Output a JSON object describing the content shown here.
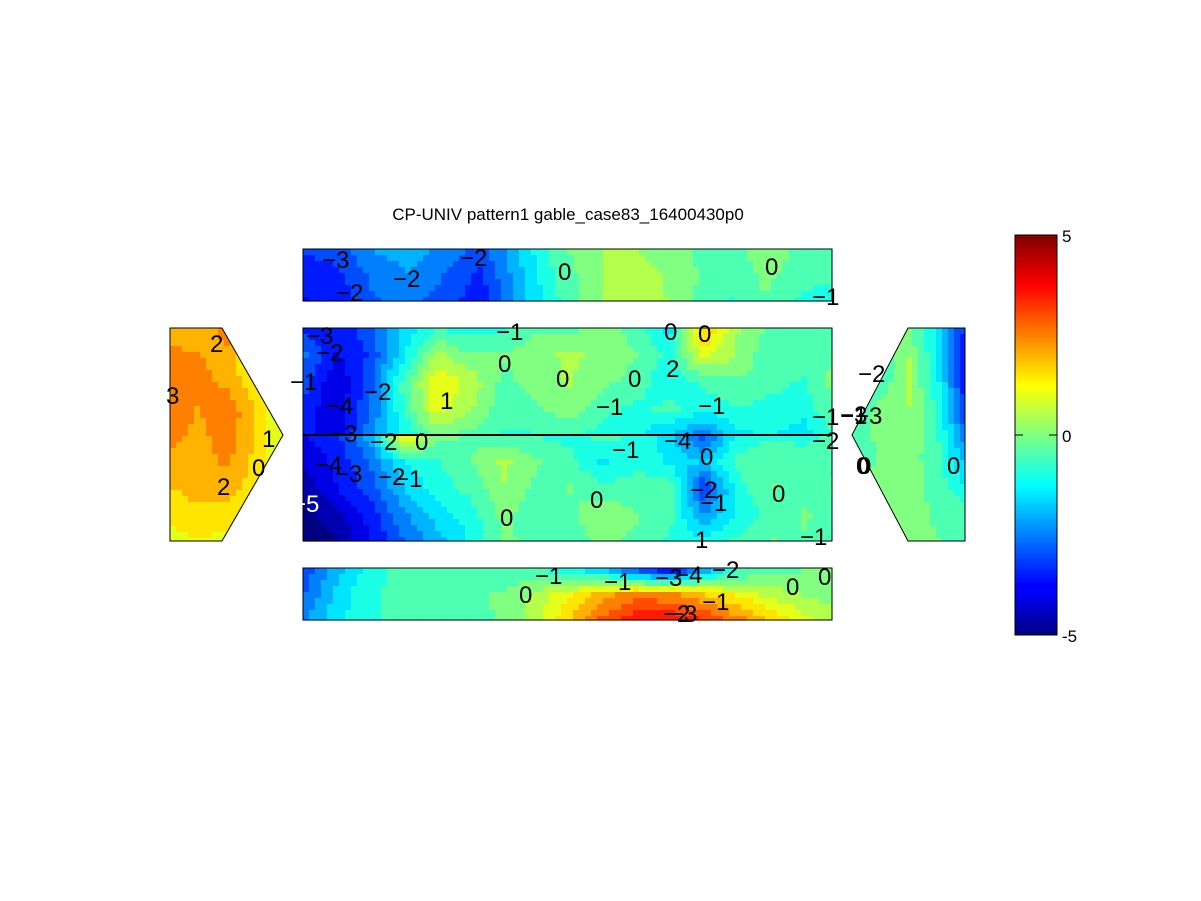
{
  "chart_data": {
    "type": "heatmap",
    "title": "CP-UNIV pattern1 gable_case83_16400430p0",
    "colormap": "jet",
    "clim": [
      -5,
      5
    ],
    "colorbar": {
      "ticks": [
        "5",
        "0",
        "-5"
      ],
      "placement": "right"
    },
    "panels": [
      {
        "name": "top-strip",
        "contour_labels": [
          "-3",
          "-2",
          "-2",
          "-2",
          "0",
          "0",
          "-1"
        ],
        "grid": [
          [
            -3.2,
            -3.0,
            -2.2,
            -2.0,
            -2.4,
            -3.0,
            -1.8,
            -0.6,
            0.2,
            0.3,
            0.1,
            -0.3,
            -0.6,
            0.2,
            -0.4,
            -0.5
          ],
          [
            -3.6,
            -3.4,
            -2.6,
            -2.3,
            -2.8,
            -3.4,
            -2.0,
            -0.8,
            0.0,
            0.5,
            0.3,
            -0.2,
            -0.7,
            -0.1,
            -0.6,
            -0.6
          ],
          [
            -3.8,
            -3.6,
            -2.8,
            -2.6,
            -3.0,
            -3.6,
            -2.1,
            -0.9,
            -0.1,
            0.6,
            0.4,
            -0.3,
            -0.8,
            -0.3,
            -0.9,
            -1.0
          ]
        ]
      },
      {
        "name": "roof-upper",
        "contour_labels": [
          "-3",
          "-2",
          "-1",
          "-2",
          "-4",
          "1",
          "0",
          "-1",
          "0",
          "0",
          "0",
          "2",
          "-1",
          "-1",
          "-1",
          "-1",
          "-3",
          "0"
        ],
        "grid": [
          [
            -3.4,
            -3.6,
            -3.0,
            -1.6,
            -0.8,
            -1.0,
            -0.9,
            -0.4,
            -0.4,
            -0.1,
            -0.5,
            -1.6,
            2.0,
            0.3,
            -0.4,
            -0.5,
            -0.6
          ],
          [
            -2.6,
            -3.8,
            -3.2,
            -1.4,
            0.4,
            -0.2,
            -0.2,
            0.2,
            0.3,
            0.2,
            -0.2,
            -0.9,
            1.0,
            0.2,
            -0.6,
            -0.6,
            -0.2
          ],
          [
            -3.0,
            -4.2,
            -3.0,
            -0.6,
            1.2,
            0.6,
            -0.4,
            0.0,
            0.3,
            -0.1,
            -0.5,
            -1.2,
            -0.6,
            -0.3,
            -0.6,
            -0.8,
            0.0
          ],
          [
            -3.4,
            -4.2,
            -2.8,
            -0.8,
            1.0,
            0.3,
            -0.6,
            -0.3,
            0.0,
            -0.6,
            -0.9,
            -0.6,
            -1.1,
            -0.8,
            -0.9,
            -1.0,
            -0.3
          ],
          [
            -3.6,
            -4.0,
            -2.4,
            -1.2,
            -0.2,
            -0.4,
            -0.8,
            -0.8,
            -0.6,
            -1.0,
            -1.2,
            -1.8,
            -2.6,
            -1.4,
            -1.2,
            -1.6,
            -0.6
          ]
        ]
      },
      {
        "name": "roof-lower",
        "contour_labels": [
          "-3",
          "-2",
          "-4",
          "-3",
          "-2",
          "-1",
          "-5",
          "0",
          "-1",
          "-4",
          "0",
          "0",
          "-2",
          "-1",
          "0",
          "-1",
          "0",
          "0",
          "-2",
          "1"
        ],
        "grid": [
          [
            -3.8,
            -3.4,
            -2.0,
            1.6,
            0.0,
            -0.3,
            -0.6,
            -0.8,
            -0.9,
            -0.6,
            -0.8,
            -1.6,
            -3.0,
            -1.2,
            -0.8,
            -1.0,
            -0.5
          ],
          [
            -4.2,
            -3.6,
            -2.8,
            -1.2,
            -0.8,
            -0.3,
            0.4,
            -0.2,
            -0.6,
            -1.4,
            -0.8,
            -1.4,
            -1.8,
            -0.6,
            -0.3,
            -0.4,
            -0.3
          ],
          [
            -4.6,
            -3.8,
            -3.0,
            -1.8,
            -1.0,
            -0.6,
            0.2,
            -0.4,
            -0.2,
            -0.5,
            -0.6,
            -0.4,
            -3.4,
            -1.0,
            -0.2,
            -0.4,
            -0.2
          ],
          [
            -5.0,
            -4.4,
            -3.6,
            -2.4,
            -1.6,
            -1.0,
            -0.1,
            -0.6,
            -0.4,
            0.2,
            -0.2,
            -0.6,
            -2.2,
            -1.2,
            -0.6,
            -0.2,
            -0.4
          ],
          [
            -5.2,
            -4.8,
            -3.8,
            -2.8,
            -2.0,
            -1.2,
            -0.2,
            -0.3,
            -0.6,
            -0.1,
            -0.4,
            -0.9,
            -1.0,
            -0.6,
            -0.2,
            -0.3,
            -0.8
          ]
        ]
      },
      {
        "name": "bottom-strip",
        "contour_labels": [
          "-1",
          "0",
          "-1",
          "-3",
          "-4",
          "-2",
          "0",
          "0",
          "-2",
          "-1",
          "-3"
        ],
        "grid": [
          [
            -3.2,
            -2.0,
            -1.0,
            -0.6,
            -0.4,
            -0.4,
            -0.6,
            -0.8,
            -1.2,
            -2.0,
            -3.4,
            -4.4,
            -2.6,
            -1.0,
            -0.6,
            -0.3,
            0.2
          ],
          [
            -2.8,
            -1.6,
            -0.8,
            -0.6,
            -0.4,
            -0.3,
            -0.2,
            0.4,
            1.2,
            2.0,
            2.6,
            2.4,
            1.8,
            1.2,
            0.6,
            0.2,
            0.0
          ],
          [
            -2.4,
            -1.4,
            -0.8,
            -0.6,
            -0.5,
            -0.4,
            -0.2,
            0.6,
            1.8,
            3.0,
            3.6,
            3.8,
            3.4,
            2.6,
            1.8,
            1.0,
            0.4
          ]
        ]
      },
      {
        "name": "left-gable",
        "contour_labels": [
          "2",
          "3",
          "1",
          "0",
          "2"
        ],
        "grid": [
          [
            1.8,
            2.0,
            2.4,
            1.0,
            0.2
          ],
          [
            2.8,
            2.4,
            2.0,
            1.2,
            0.4
          ],
          [
            2.6,
            2.2,
            2.6,
            1.8,
            0.6
          ],
          [
            2.2,
            2.0,
            2.4,
            1.6,
            0.8
          ],
          [
            1.6,
            1.8,
            1.8,
            1.4,
            0.6
          ],
          [
            1.0,
            1.2,
            1.0,
            0.6,
            0.2
          ]
        ]
      },
      {
        "name": "right-gable",
        "contour_labels": [
          "-2",
          "-3",
          "0",
          "0"
        ],
        "grid": [
          [
            -0.6,
            -0.4,
            -0.2,
            -1.4,
            -3.4
          ],
          [
            -1.0,
            -0.8,
            0.4,
            -1.2,
            -3.8
          ],
          [
            -0.8,
            0.0,
            0.2,
            -0.8,
            -3.2
          ],
          [
            -0.5,
            -0.2,
            0.0,
            -0.6,
            -2.0
          ],
          [
            -0.3,
            -0.1,
            0.0,
            -0.4,
            -0.8
          ],
          [
            -0.2,
            0.0,
            0.0,
            -0.2,
            -0.4
          ]
        ]
      }
    ]
  }
}
